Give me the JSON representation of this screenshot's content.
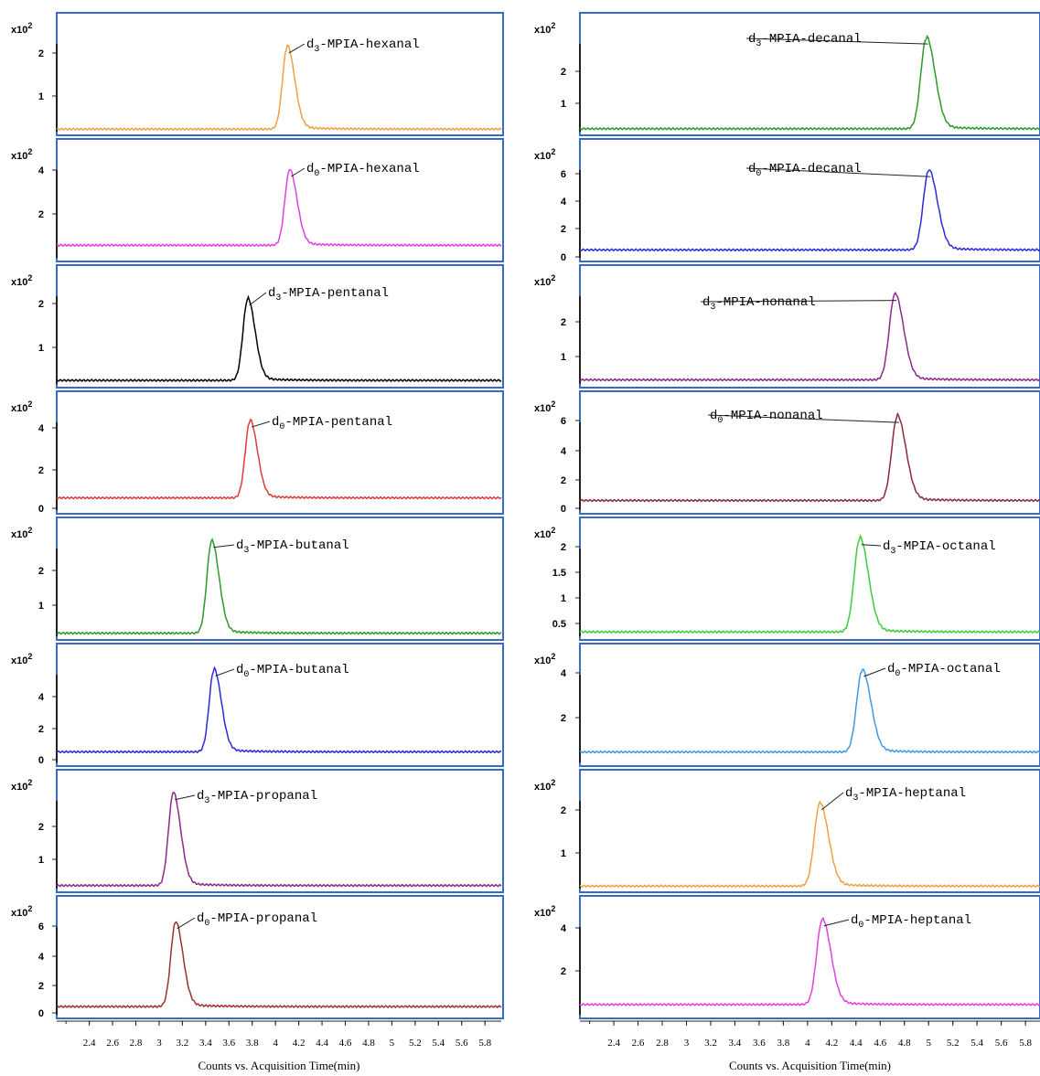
{
  "chart_data": [
    {
      "type": "line",
      "panel": "left-1",
      "title": "",
      "y_scale_label": "x10 2",
      "yticks": [
        "2",
        "1"
      ],
      "ylim": [
        0.35,
        2.5
      ],
      "baseline": 0.4,
      "peak_x": 4.1,
      "peak_y": 2.0,
      "width": 0.04,
      "color": "#f0a040",
      "annotation": {
        "prefix": "d",
        "sub": "3",
        "rest": "-MPIA-hexanal"
      }
    },
    {
      "type": "line",
      "panel": "left-2",
      "title": "",
      "y_scale_label": "x10 2",
      "yticks": [
        "4",
        "2"
      ],
      "ylim": [
        0.0,
        4.8
      ],
      "baseline": 0.55,
      "peak_x": 4.12,
      "peak_y": 3.8,
      "width": 0.04,
      "color": "#e040e0",
      "annotation": {
        "prefix": "d",
        "sub": "0",
        "rest": "-MPIA-hexanal"
      }
    },
    {
      "type": "line",
      "panel": "left-3",
      "title": "",
      "y_scale_label": "x10 2",
      "yticks": [
        "2",
        "1"
      ],
      "ylim": [
        0.35,
        2.5
      ],
      "baseline": 0.42,
      "peak_x": 3.76,
      "peak_y": 2.0,
      "width": 0.04,
      "color": "#000000",
      "annotation": {
        "prefix": "d",
        "sub": "3",
        "rest": "-MPIA-pentanal"
      }
    },
    {
      "type": "line",
      "panel": "left-4",
      "title": "",
      "y_scale_label": "x10 2",
      "yticks": [
        "4",
        "2",
        "0"
      ],
      "ylim": [
        -0.2,
        5.0
      ],
      "baseline": 0.38,
      "peak_x": 3.78,
      "peak_y": 4.0,
      "width": 0.04,
      "color": "#e03a3a",
      "annotation": {
        "prefix": "d",
        "sub": "0",
        "rest": "-MPIA-pentanal"
      }
    },
    {
      "type": "line",
      "panel": "left-5",
      "title": "",
      "y_scale_label": "x10 2",
      "yticks": [
        "2",
        "1"
      ],
      "ylim": [
        0.35,
        2.85
      ],
      "baseline": 0.42,
      "peak_x": 3.45,
      "peak_y": 2.5,
      "width": 0.04,
      "color": "#2a9a2a",
      "annotation": {
        "prefix": "d",
        "sub": "3",
        "rest": "-MPIA-butanal"
      }
    },
    {
      "type": "line",
      "panel": "left-6",
      "title": "",
      "y_scale_label": "x10 2",
      "yticks": [
        "4",
        "2",
        "0"
      ],
      "ylim": [
        -0.2,
        6.0
      ],
      "baseline": 0.4,
      "peak_x": 3.47,
      "peak_y": 5.0,
      "width": 0.04,
      "color": "#2a2adc",
      "annotation": {
        "prefix": "d",
        "sub": "0",
        "rest": "-MPIA-butanal"
      }
    },
    {
      "type": "line",
      "panel": "left-7",
      "title": "",
      "y_scale_label": "x10 2",
      "yticks": [
        "2",
        "1"
      ],
      "ylim": [
        0.35,
        2.85
      ],
      "baseline": 0.42,
      "peak_x": 3.12,
      "peak_y": 2.5,
      "width": 0.04,
      "color": "#8a2a8a",
      "annotation": {
        "prefix": "d",
        "sub": "3",
        "rest": "-MPIA-propanal"
      }
    },
    {
      "type": "line",
      "panel": "left-8",
      "title": "",
      "y_scale_label": "x10 2",
      "yticks": [
        "6",
        "4",
        "2",
        "0"
      ],
      "ylim": [
        -0.2,
        6.5
      ],
      "baseline": 0.3,
      "peak_x": 3.14,
      "peak_y": 5.4,
      "width": 0.04,
      "color": "#a03030",
      "annotation": {
        "prefix": "d",
        "sub": "0",
        "rest": "-MPIA-propanal"
      }
    },
    {
      "type": "line",
      "panel": "right-1",
      "title": "",
      "y_scale_label": "x10 2",
      "yticks": [
        "2",
        "1"
      ],
      "ylim": [
        0.35,
        3.0
      ],
      "baseline": 0.42,
      "peak_x": 4.98,
      "peak_y": 2.6,
      "width": 0.045,
      "color": "#2a9a2a",
      "annotation": {
        "prefix": "d",
        "sub": "3",
        "rest": "-MPIA-decanal"
      }
    },
    {
      "type": "line",
      "panel": "right-2",
      "title": "",
      "y_scale_label": "x10 2",
      "yticks": [
        "6",
        "4",
        "2",
        "0"
      ],
      "ylim": [
        -0.2,
        7.4
      ],
      "baseline": 0.35,
      "peak_x": 5.0,
      "peak_y": 5.8,
      "width": 0.045,
      "color": "#2a2adc",
      "annotation": {
        "prefix": "d",
        "sub": "0",
        "rest": "-MPIA-decanal"
      }
    },
    {
      "type": "line",
      "panel": "right-3",
      "title": "",
      "y_scale_label": "x10 2",
      "yticks": [
        "2",
        "1"
      ],
      "ylim": [
        0.35,
        3.0
      ],
      "baseline": 0.45,
      "peak_x": 4.72,
      "peak_y": 2.5,
      "width": 0.045,
      "color": "#8a2a8a",
      "annotation": {
        "prefix": "d",
        "sub": "3",
        "rest": "-MPIA-nonanal"
      }
    },
    {
      "type": "line",
      "panel": "right-4",
      "title": "",
      "y_scale_label": "x10 2",
      "yticks": [
        "6",
        "4",
        "2",
        "0"
      ],
      "ylim": [
        -0.2,
        6.4
      ],
      "baseline": 0.38,
      "peak_x": 4.74,
      "peak_y": 5.4,
      "width": 0.045,
      "color": "#8a2a3a",
      "annotation": {
        "prefix": "d",
        "sub": "0",
        "rest": "-MPIA-nonanal"
      }
    },
    {
      "type": "line",
      "panel": "right-5",
      "title": "",
      "y_scale_label": "x10 2",
      "yticks": [
        "2",
        "1.5",
        "1",
        "0.5"
      ],
      "ylim": [
        0.35,
        2.1
      ],
      "baseline": 0.42,
      "peak_x": 4.43,
      "peak_y": 1.9,
      "width": 0.045,
      "color": "#3acc3a",
      "annotation": {
        "prefix": "d",
        "sub": "3",
        "rest": "-MPIA-octanal"
      }
    },
    {
      "type": "line",
      "panel": "right-6",
      "title": "",
      "y_scale_label": "x10 2",
      "yticks": [
        "4",
        "2"
      ],
      "ylim": [
        0.1,
        4.3
      ],
      "baseline": 0.5,
      "peak_x": 4.45,
      "peak_y": 3.6,
      "width": 0.045,
      "color": "#3a9ae8",
      "annotation": {
        "prefix": "d",
        "sub": "0",
        "rest": "-MPIA-octanal"
      }
    },
    {
      "type": "line",
      "panel": "right-7",
      "title": "",
      "y_scale_label": "x10 2",
      "yticks": [
        "2",
        "1"
      ],
      "ylim": [
        0.35,
        2.5
      ],
      "baseline": 0.4,
      "peak_x": 4.1,
      "peak_y": 2.0,
      "width": 0.045,
      "color": "#f0a040",
      "annotation": {
        "prefix": "d",
        "sub": "3",
        "rest": "-MPIA-heptanal"
      }
    },
    {
      "type": "line",
      "panel": "right-8",
      "title": "",
      "y_scale_label": "x10 2",
      "yticks": [
        "4",
        "2"
      ],
      "ylim": [
        0.1,
        4.4
      ],
      "baseline": 0.5,
      "peak_x": 4.12,
      "peak_y": 3.8,
      "width": 0.045,
      "color": "#e040e0",
      "annotation": {
        "prefix": "d",
        "sub": "0",
        "rest": "-MPIA-heptanal"
      }
    }
  ],
  "x_axis": {
    "left": {
      "xlim": [
        2.12,
        5.94
      ],
      "ticks": [
        "2.4",
        "2.6",
        "2.8",
        "3",
        "3.2",
        "3.4",
        "3.6",
        "3.8",
        "4",
        "4.2",
        "4.4",
        "4.6",
        "4.8",
        "5",
        "5.2",
        "5.4",
        "5.6",
        "5.8"
      ],
      "title": "Counts vs. Acquisition Time(min)"
    },
    "right": {
      "xlim": [
        2.12,
        5.92
      ],
      "ticks": [
        "2.4",
        "2.6",
        "2.8",
        "3",
        "3.2",
        "3.4",
        "3.6",
        "3.8",
        "4",
        "4.2",
        "4.4",
        "4.6",
        "4.8",
        "5",
        "5.2",
        "5.4",
        "5.6",
        "5.8"
      ],
      "title": "Counts vs. Acquisition Time(min)"
    }
  }
}
